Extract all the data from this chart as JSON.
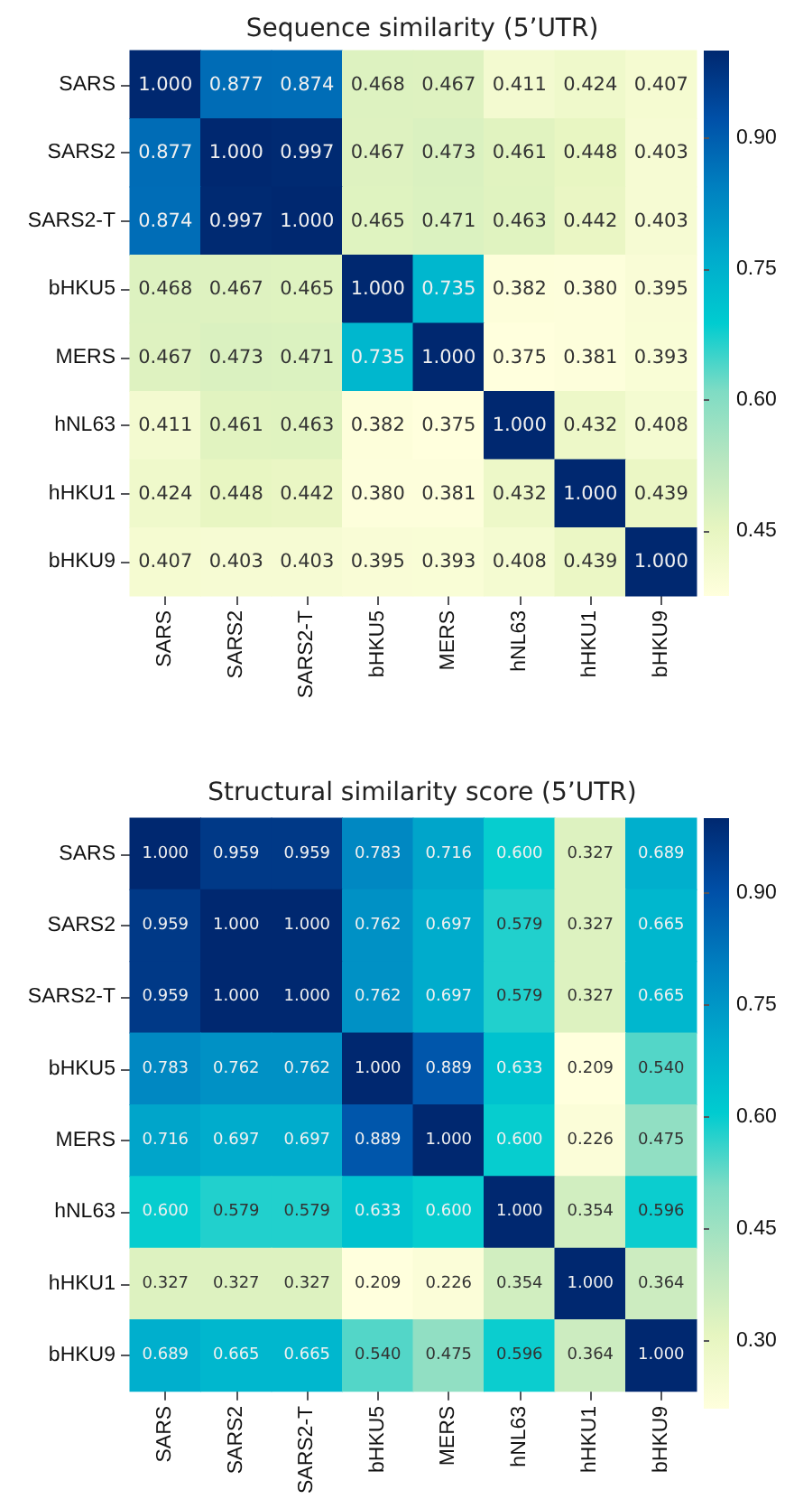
{
  "chart_data": [
    {
      "type": "heatmap",
      "title": "Sequence similarity (5’UTR)",
      "categories": [
        "SARS",
        "SARS2",
        "SARS2-T",
        "bHKU5",
        "MERS",
        "hNL63",
        "hHKU1",
        "bHKU9"
      ],
      "y_categories": [
        "SARS",
        "SARS2",
        "SARS2-T",
        "bHKU5",
        "MERS",
        "hNL63",
        "hHKU1",
        "bHKU9"
      ],
      "cells": [
        [
          1.0,
          0.877,
          0.874,
          0.468,
          0.467,
          0.411,
          0.424,
          0.407
        ],
        [
          0.877,
          1.0,
          0.997,
          0.467,
          0.473,
          0.461,
          0.448,
          0.403
        ],
        [
          0.874,
          0.997,
          1.0,
          0.465,
          0.471,
          0.463,
          0.442,
          0.403
        ],
        [
          0.468,
          0.467,
          0.465,
          1.0,
          0.735,
          0.382,
          0.38,
          0.395
        ],
        [
          0.467,
          0.473,
          0.471,
          0.735,
          1.0,
          0.375,
          0.381,
          0.393
        ],
        [
          0.411,
          0.461,
          0.463,
          0.382,
          0.375,
          1.0,
          0.432,
          0.408
        ],
        [
          0.424,
          0.448,
          0.442,
          0.38,
          0.381,
          0.432,
          1.0,
          0.439
        ],
        [
          0.407,
          0.403,
          0.403,
          0.395,
          0.393,
          0.408,
          0.439,
          1.0
        ]
      ],
      "cell_labels": [
        [
          "1.000",
          "0.877",
          "0.874",
          "0.468",
          "0.467",
          "0.411",
          "0.424",
          "0.407"
        ],
        [
          "0.877",
          "1.000",
          "0.997",
          "0.467",
          "0.473",
          "0.461",
          "0.448",
          "0.403"
        ],
        [
          "0.874",
          "0.997",
          "1.000",
          "0.465",
          "0.471",
          "0.463",
          "0.442",
          "0.403"
        ],
        [
          "0.468",
          "0.467",
          "0.465",
          "1.000",
          "0.735",
          "0.382",
          "0.380",
          "0.395"
        ],
        [
          "0.467",
          "0.473",
          "0.471",
          "0.735",
          "1.000",
          "0.375",
          "0.381",
          "0.393"
        ],
        [
          "0.411",
          "0.461",
          "0.463",
          "0.382",
          "0.375",
          "1.000",
          "0.432",
          "0.408"
        ],
        [
          "0.424",
          "0.448",
          "0.442",
          "0.380",
          "0.381",
          "0.432",
          "1.000",
          "0.439"
        ],
        [
          "0.407",
          "0.403",
          "0.403",
          "0.395",
          "0.393",
          "0.408",
          "0.439",
          "1.000"
        ]
      ],
      "clim": [
        0.375,
        1.0
      ],
      "cticks": [
        {
          "value": 0.45,
          "label": "0.45"
        },
        {
          "value": 0.6,
          "label": "0.60"
        },
        {
          "value": 0.75,
          "label": "0.75"
        },
        {
          "value": 0.9,
          "label": "0.90"
        }
      ]
    },
    {
      "type": "heatmap",
      "title": "Structural similarity score (5’UTR)",
      "categories": [
        "SARS",
        "SARS2",
        "SARS2-T",
        "bHKU5",
        "MERS",
        "hNL63",
        "hHKU1",
        "bHKU9"
      ],
      "y_categories": [
        "SARS",
        "SARS2",
        "SARS2-T",
        "bHKU5",
        "MERS",
        "hNL63",
        "hHKU1",
        "bHKU9"
      ],
      "cells": [
        [
          1.0,
          0.959,
          0.959,
          0.783,
          0.716,
          0.6,
          0.327,
          0.689
        ],
        [
          0.959,
          1.0,
          1.0,
          0.762,
          0.697,
          0.579,
          0.327,
          0.665
        ],
        [
          0.959,
          1.0,
          1.0,
          0.762,
          0.697,
          0.579,
          0.327,
          0.665
        ],
        [
          0.783,
          0.762,
          0.762,
          1.0,
          0.889,
          0.633,
          0.209,
          0.54
        ],
        [
          0.716,
          0.697,
          0.697,
          0.889,
          1.0,
          0.6,
          0.226,
          0.475
        ],
        [
          0.6,
          0.579,
          0.579,
          0.633,
          0.6,
          1.0,
          0.354,
          0.596
        ],
        [
          0.327,
          0.327,
          0.327,
          0.209,
          0.226,
          0.354,
          1.0,
          0.364
        ],
        [
          0.689,
          0.665,
          0.665,
          0.54,
          0.475,
          0.596,
          0.364,
          1.0
        ]
      ],
      "cell_labels": [
        [
          "1.000",
          "0.959",
          "0.959",
          "0.783",
          "0.716",
          "0.600",
          "0.327",
          "0.689"
        ],
        [
          "0.959",
          "1.000",
          "1.000",
          "0.762",
          "0.697",
          "0.579",
          "0.327",
          "0.665"
        ],
        [
          "0.959",
          "1.000",
          "1.000",
          "0.762",
          "0.697",
          "0.579",
          "0.327",
          "0.665"
        ],
        [
          "0.783",
          "0.762",
          "0.762",
          "1.000",
          "0.889",
          "0.633",
          "0.209",
          "0.540"
        ],
        [
          "0.716",
          "0.697",
          "0.697",
          "0.889",
          "1.000",
          "0.600",
          "0.226",
          "0.475"
        ],
        [
          "0.600",
          "0.579",
          "0.579",
          "0.633",
          "0.600",
          "1.000",
          "0.354",
          "0.596"
        ],
        [
          "0.327",
          "0.327",
          "0.327",
          "0.209",
          "0.226",
          "0.354",
          "1.000",
          "0.364"
        ],
        [
          "0.689",
          "0.665",
          "0.665",
          "0.540",
          "0.475",
          "0.596",
          "0.364",
          "1.000"
        ]
      ],
      "clim": [
        0.209,
        1.0
      ],
      "cticks": [
        {
          "value": 0.3,
          "label": "0.30"
        },
        {
          "value": 0.45,
          "label": "0.45"
        },
        {
          "value": 0.6,
          "label": "0.60"
        },
        {
          "value": 0.75,
          "label": "0.75"
        },
        {
          "value": 0.9,
          "label": "0.90"
        }
      ]
    }
  ]
}
